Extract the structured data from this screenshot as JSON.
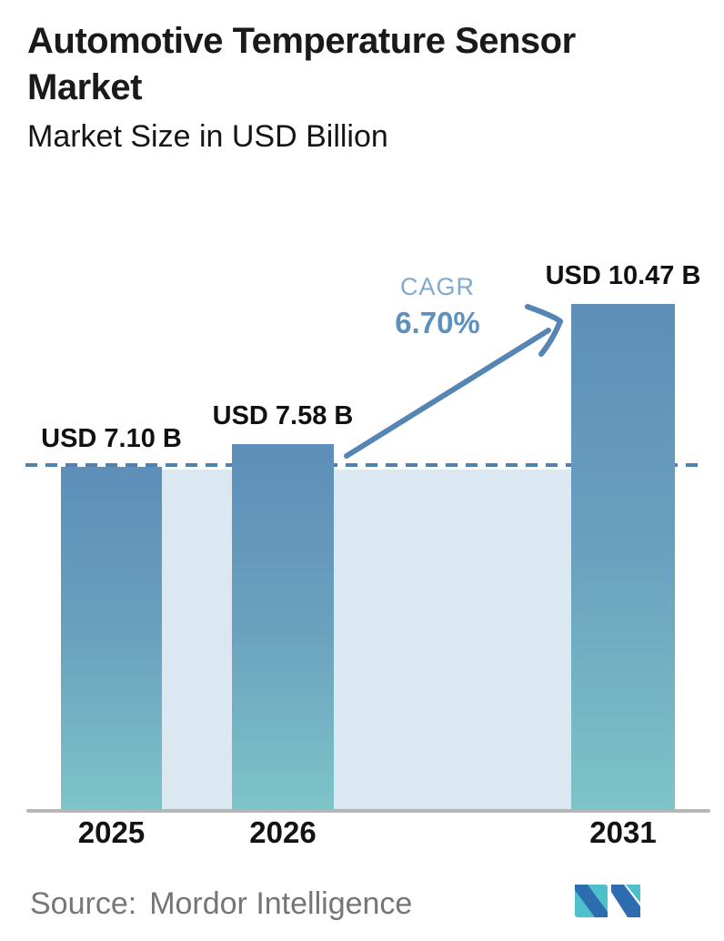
{
  "header": {
    "title": "Automotive Temperature Sensor Market",
    "subtitle": "Market Size in USD Billion"
  },
  "chart_data": {
    "type": "bar",
    "title": "Automotive Temperature Sensor Market",
    "subtitle": "Market Size in USD Billion",
    "unit": "USD Billion",
    "categories": [
      "2025",
      "2026",
      "2031"
    ],
    "values": [
      7.1,
      7.58,
      10.47
    ],
    "bars": [
      {
        "year": "2025",
        "value": 7.1,
        "label": "USD 7.10 B"
      },
      {
        "year": "2026",
        "value": 7.58,
        "label": "USD 7.58 B"
      },
      {
        "year": "2031",
        "value": 10.47,
        "label": "USD 10.47 B"
      }
    ],
    "annotations": {
      "cagr_label": "CAGR",
      "cagr_value": "6.70%",
      "dashed_reference_value": 7.1,
      "arrow": "diagonal arrow from 2026 bar up to 2031 bar"
    },
    "legend": false,
    "grid": false,
    "ylim": [
      0,
      11
    ],
    "xlabel": "",
    "ylabel": "",
    "colors": {
      "bar_gradient_top": "#5d8fb9",
      "bar_gradient_bottom": "#7ec4c8",
      "band_fill": "#dce8f1",
      "dashed_line": "#4f81b0",
      "arrow": "#5585b5",
      "cagr_label_text": "#7fa9cd",
      "cagr_value_text": "#5e90bf",
      "axis_line": "#b6b6b6",
      "logo_teal": "#4ec0cb",
      "logo_blue": "#2e6cb0"
    }
  },
  "footer": {
    "source_label": "Source:",
    "source_value": "Mordor Intelligence",
    "logo_icon": "mordor-intelligence-logo"
  }
}
